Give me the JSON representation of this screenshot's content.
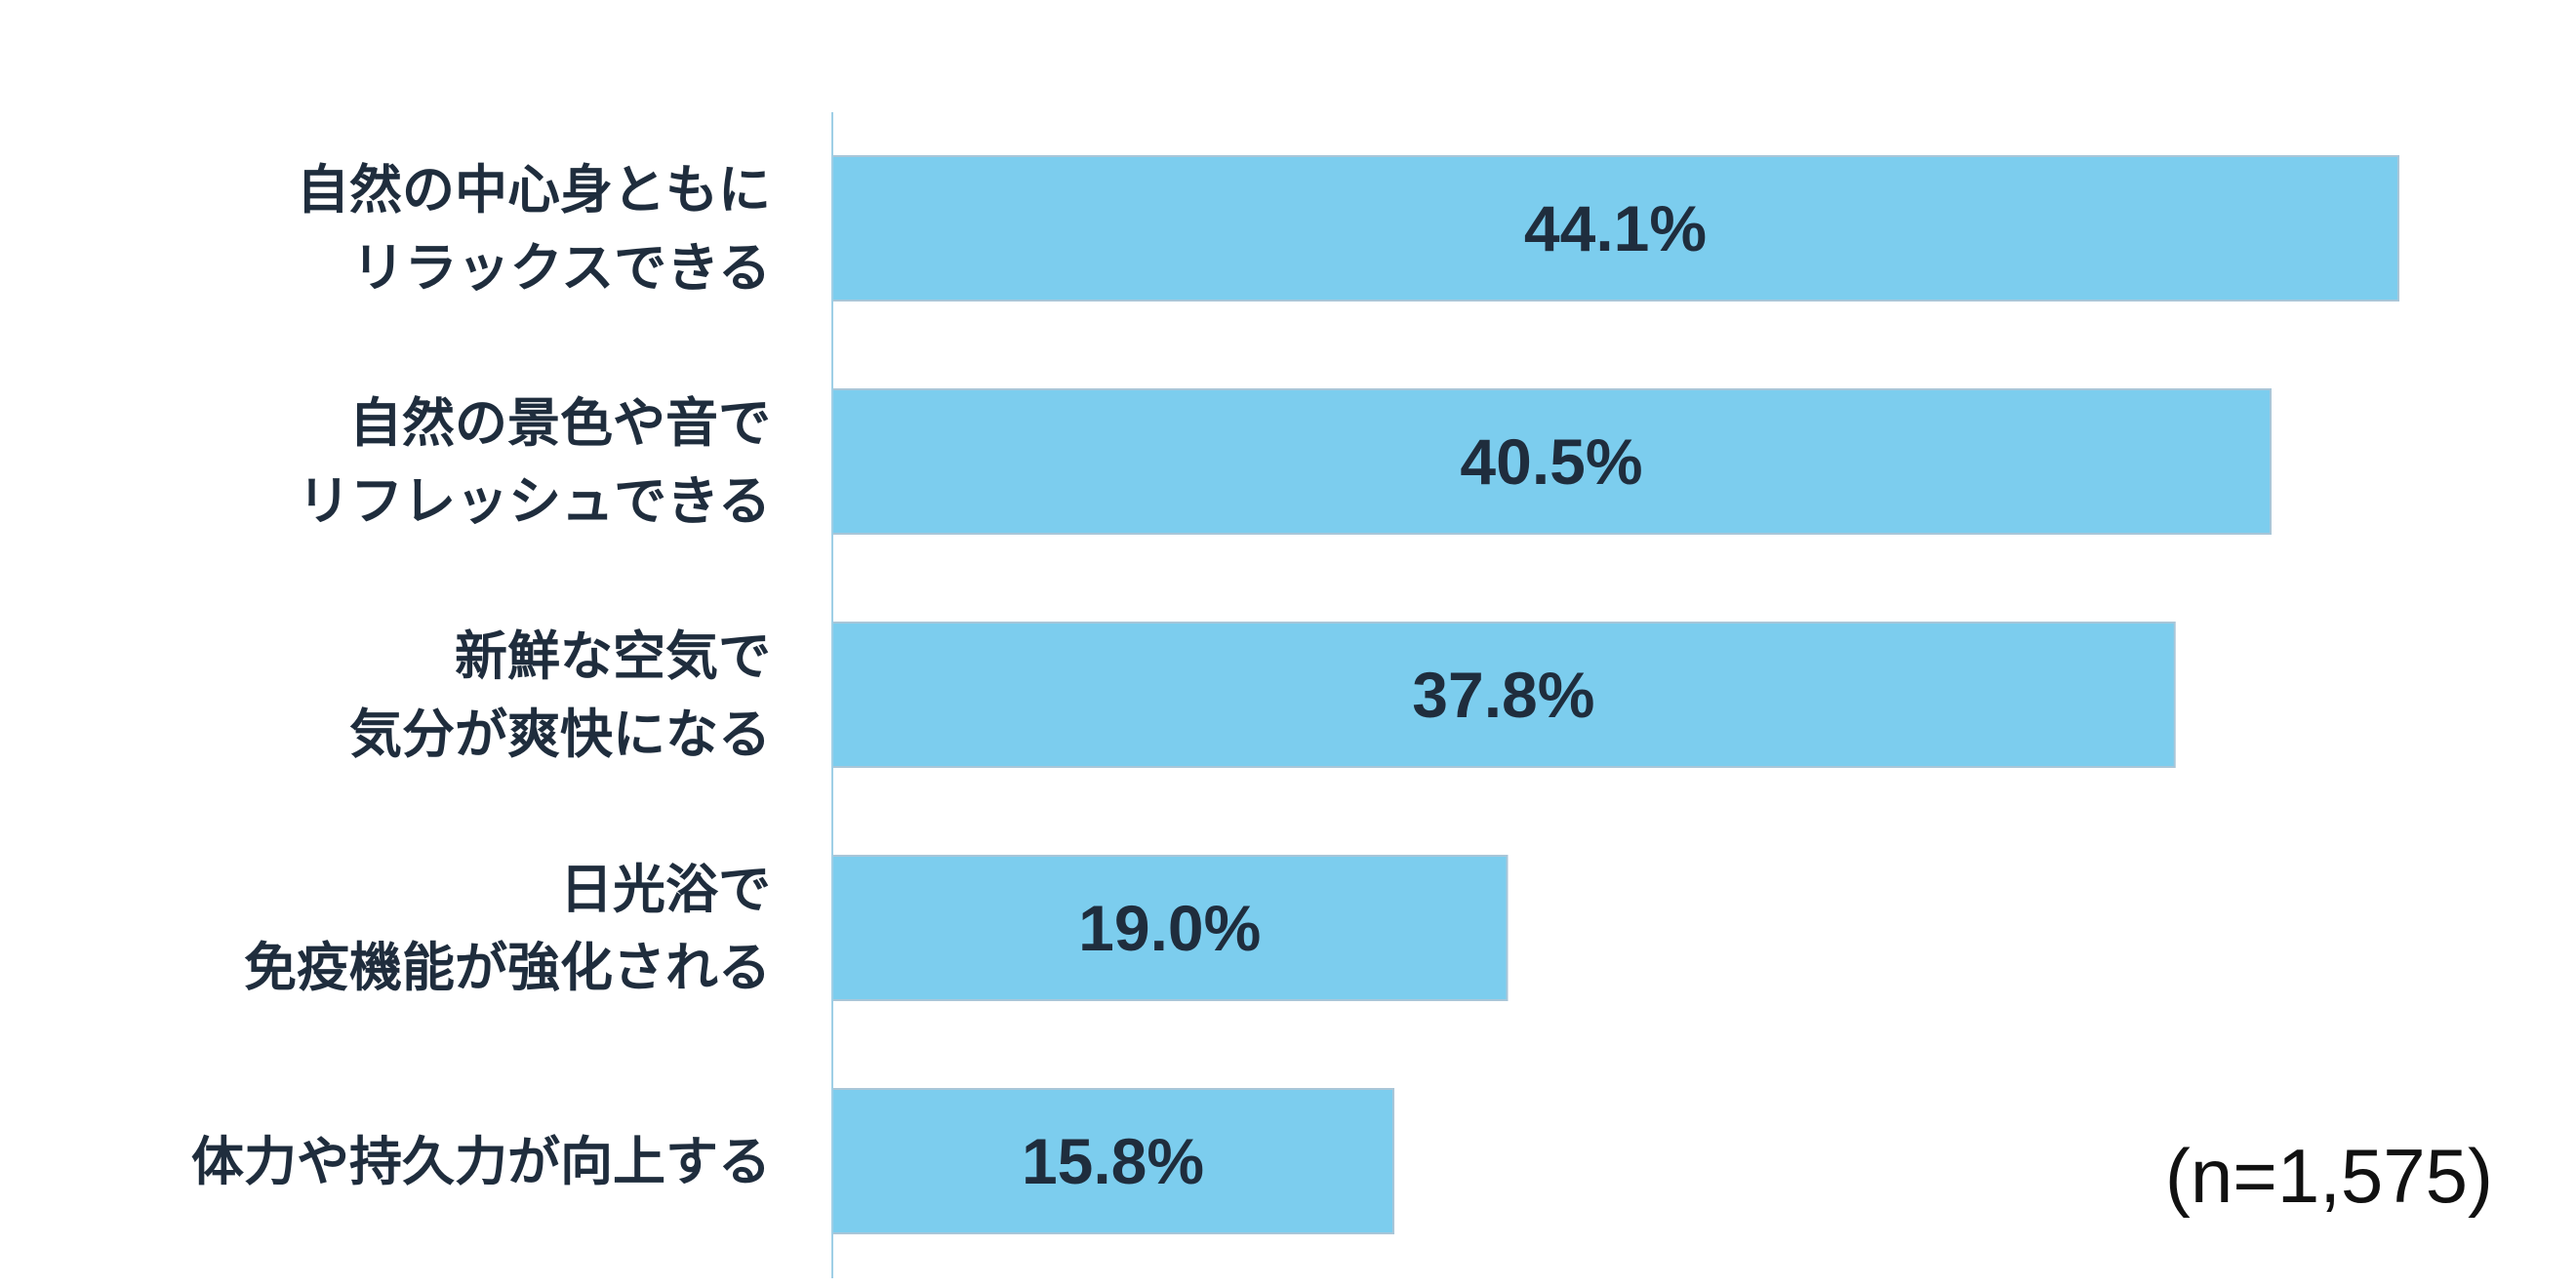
{
  "chart_data": {
    "type": "bar",
    "orientation": "horizontal",
    "categories": [
      [
        "自然の中心身ともに",
        "リラックスできる"
      ],
      [
        "自然の景色や音で",
        "リフレッシュできる"
      ],
      [
        "新鮮な空気で",
        "気分が爽快になる"
      ],
      [
        "日光浴で",
        "免疫機能が強化される"
      ],
      [
        "体力や持久力が向上する"
      ]
    ],
    "values": [
      44.1,
      40.5,
      37.8,
      19.0,
      15.8
    ],
    "value_labels": [
      "44.1%",
      "40.5%",
      "37.8%",
      "19.0%",
      "15.8%"
    ],
    "xlim": [
      0,
      50
    ],
    "title": "",
    "xlabel": "",
    "ylabel": "",
    "grid": false,
    "bar_color": "#7ccdee",
    "bar_edge_color": "#a9c6d8",
    "axis_color": "#9fcfe6",
    "note": "(n=1,575)"
  }
}
